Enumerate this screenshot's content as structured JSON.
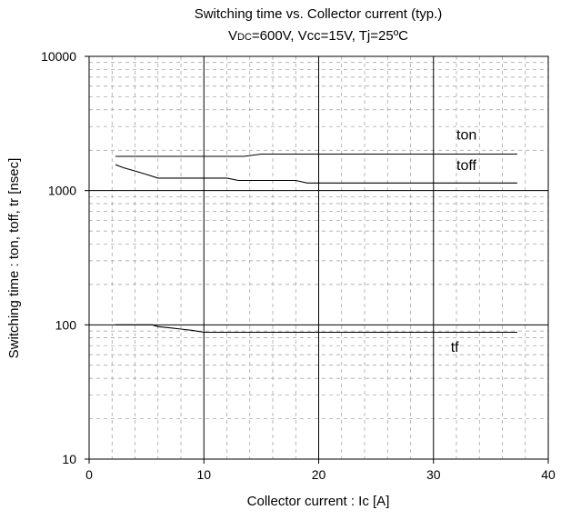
{
  "chart_data": {
    "type": "line",
    "title": "Switching time vs. Collector current (typ.)",
    "subtitle": {
      "parts": [
        {
          "text": "V",
          "sub": false
        },
        {
          "text": "DC",
          "sub": true
        },
        {
          "text": "=600V, Vcc=15V, Tj=25ºC",
          "sub": false
        }
      ]
    },
    "xlabel": "Collector current : Ic [A]",
    "ylabel": "Switching time : ton, toff, tr [nsec]",
    "xlim": [
      0,
      40
    ],
    "ylim": [
      10,
      10000
    ],
    "yscale": "log",
    "x_ticks": [
      "0",
      "10",
      "20",
      "30",
      "40"
    ],
    "y_ticks": [
      "10",
      "100",
      "1000",
      "10000"
    ],
    "grid": "major solid, minor dashed",
    "series": [
      {
        "name": "ton",
        "x": [
          2.3,
          5,
          8,
          11,
          13.5,
          15,
          18,
          22,
          26,
          30,
          34,
          37.3
        ],
        "y": [
          1800,
          1800,
          1800,
          1800,
          1800,
          1870,
          1870,
          1870,
          1870,
          1870,
          1870,
          1870
        ]
      },
      {
        "name": "toff",
        "x": [
          2.3,
          3,
          4,
          5,
          6,
          7,
          9,
          12,
          13,
          15,
          17,
          18,
          19,
          20,
          25,
          30,
          37.3
        ],
        "y": [
          1560,
          1480,
          1400,
          1320,
          1240,
          1240,
          1240,
          1240,
          1190,
          1190,
          1190,
          1190,
          1140,
          1140,
          1140,
          1140,
          1140
        ]
      },
      {
        "name": "tf",
        "x": [
          2.3,
          4,
          5.5,
          6,
          7,
          8,
          9,
          10,
          15,
          20,
          30,
          37.3
        ],
        "y": [
          100,
          100,
          100,
          97,
          95,
          93,
          91,
          88,
          88,
          88,
          88,
          88
        ]
      }
    ],
    "annotations": [
      {
        "text": "ton",
        "x": 32,
        "y": 2400
      },
      {
        "text": "toff",
        "x": 32,
        "y": 1420
      },
      {
        "text": "tf",
        "x": 31.5,
        "y": 63
      }
    ]
  }
}
